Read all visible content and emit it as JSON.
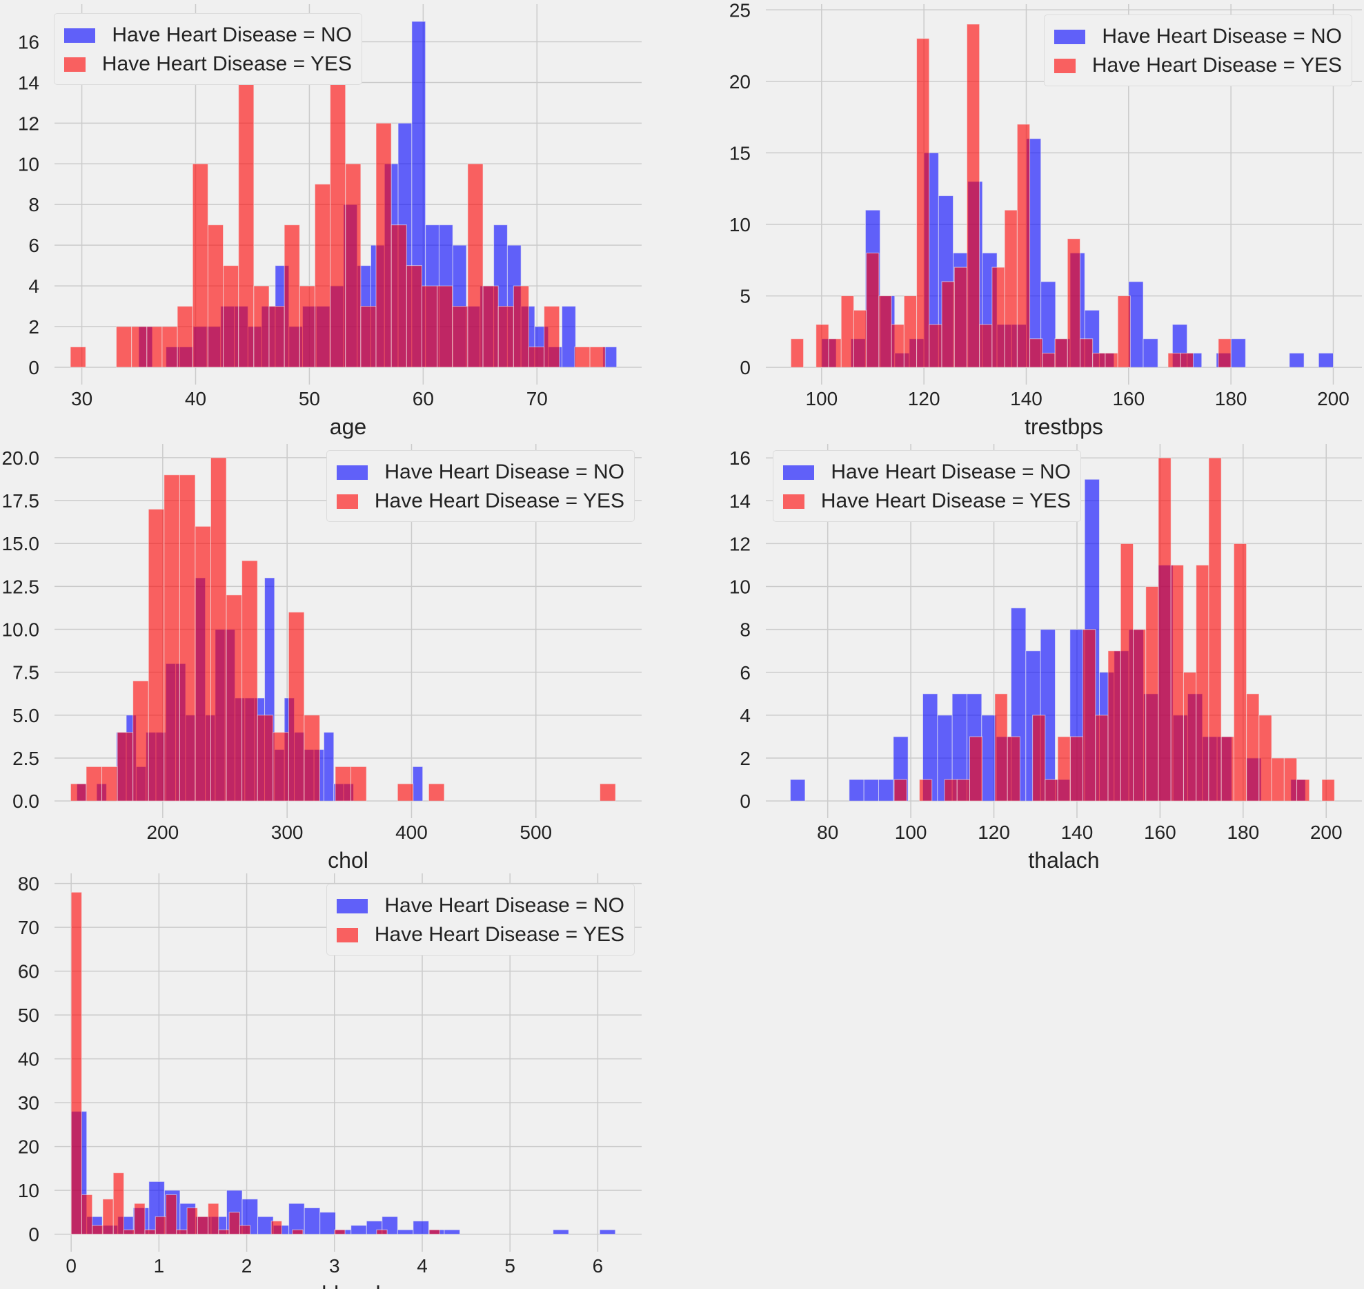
{
  "colors": {
    "no": "#0000ff",
    "yes": "#ff0000",
    "background": "#f0f0f0",
    "grid": "#cbcbcb"
  },
  "legend": {
    "no_label": "Have Heart Disease = NO",
    "yes_label": "Have Heart Disease = YES"
  },
  "chart_data": [
    {
      "type": "bar",
      "title": "",
      "xlabel": "age",
      "ylabel": "",
      "xlim": [
        27.6,
        79.2
      ],
      "ylim": [
        -0.85,
        17.85
      ],
      "grid": true,
      "legend": "top-left",
      "xticks": [
        30,
        40,
        50,
        60,
        70
      ],
      "xtick_labels": [
        "30",
        "40",
        "50",
        "60",
        "70"
      ],
      "yticks": [
        0,
        2,
        4,
        6,
        8,
        10,
        12,
        14,
        16
      ],
      "ytick_labels": [
        "0",
        "2",
        "4",
        "6",
        "8",
        "10",
        "12",
        "14",
        "16"
      ],
      "series": [
        {
          "name": "Have Heart Disease = NO",
          "color_key": "no",
          "range": [
            35,
            77
          ],
          "values": [
            2,
            0,
            1,
            1,
            2,
            2,
            3,
            3,
            2,
            3,
            5,
            2,
            3,
            3,
            4,
            8,
            5,
            6,
            10,
            12,
            17,
            7,
            7,
            6,
            3,
            4,
            7,
            6,
            3,
            2,
            1,
            3,
            0,
            0,
            1
          ]
        },
        {
          "name": "Have Heart Disease = YES",
          "color_key": "yes",
          "range": [
            29,
            76
          ],
          "values": [
            1,
            0,
            0,
            2,
            2,
            2,
            2,
            3,
            10,
            7,
            5,
            14,
            4,
            3,
            7,
            4,
            9,
            15,
            10,
            3,
            12,
            7,
            5,
            4,
            4,
            3,
            10,
            4,
            3,
            4,
            1,
            3,
            0,
            1,
            1
          ]
        }
      ]
    },
    {
      "type": "bar",
      "title": "",
      "xlabel": "trestbps",
      "ylabel": "",
      "xlim": [
        89.1,
        205.6
      ],
      "ylim": [
        -1.2,
        25.4
      ],
      "grid": true,
      "legend": "top-right",
      "xticks": [
        100,
        120,
        140,
        160,
        180,
        200
      ],
      "xtick_labels": [
        "100",
        "120",
        "140",
        "160",
        "180",
        "200"
      ],
      "yticks": [
        0,
        5,
        10,
        15,
        20,
        25
      ],
      "ytick_labels": [
        "0",
        "5",
        "10",
        "15",
        "20",
        "25"
      ],
      "series": [
        {
          "name": "Have Heart Disease = NO",
          "color_key": "no",
          "range": [
            100,
            200
          ],
          "values": [
            2,
            0,
            2,
            11,
            5,
            1,
            2,
            15,
            12,
            8,
            13,
            8,
            3,
            3,
            16,
            6,
            2,
            8,
            4,
            1,
            0,
            6,
            2,
            0,
            3,
            1,
            0,
            1,
            2,
            0,
            0,
            0,
            1,
            0,
            1
          ]
        },
        {
          "name": "Have Heart Disease = YES",
          "color_key": "yes",
          "range": [
            94,
            180
          ],
          "values": [
            2,
            0,
            3,
            2,
            5,
            4,
            8,
            5,
            3,
            5,
            23,
            3,
            6,
            7,
            24,
            3,
            7,
            11,
            17,
            2,
            1,
            2,
            9,
            2,
            1,
            1,
            5,
            0,
            0,
            0,
            1,
            1,
            0,
            0,
            2
          ]
        }
      ]
    },
    {
      "type": "bar",
      "title": "",
      "xlabel": "chol",
      "ylabel": "",
      "xlim": [
        113,
        585
      ],
      "ylim": [
        -1.0,
        20.8
      ],
      "grid": true,
      "legend": "top-right",
      "xticks": [
        200,
        300,
        400,
        500
      ],
      "xtick_labels": [
        "200",
        "300",
        "400",
        "500"
      ],
      "yticks": [
        0,
        2.5,
        5,
        7.5,
        10,
        12.5,
        15,
        17.5,
        20
      ],
      "ytick_labels": [
        "0.0",
        "2.5",
        "5.0",
        "7.5",
        "10.0",
        "12.5",
        "15.0",
        "17.5",
        "20.0"
      ],
      "series": [
        {
          "name": "Have Heart Disease = NO",
          "color_key": "no",
          "range": [
            131,
            409
          ],
          "values": [
            1,
            0,
            1,
            0,
            4,
            5,
            2,
            4,
            4,
            8,
            8,
            5,
            13,
            5,
            10,
            10,
            6,
            6,
            6,
            13,
            3,
            6,
            4,
            3,
            3,
            4,
            1,
            1,
            0,
            0,
            0,
            0,
            0,
            0,
            2
          ]
        },
        {
          "name": "Have Heart Disease = YES",
          "color_key": "yes",
          "range": [
            126,
            564
          ],
          "values": [
            1,
            2,
            2,
            4,
            7,
            17,
            19,
            19,
            16,
            20,
            12,
            14,
            5,
            4,
            11,
            5,
            0,
            2,
            2,
            0,
            0,
            1,
            0,
            1,
            0,
            0,
            0,
            0,
            0,
            0,
            0,
            0,
            0,
            0,
            1
          ]
        }
      ]
    },
    {
      "type": "bar",
      "title": "",
      "xlabel": "thalach",
      "ylabel": "",
      "xlim": [
        65.1,
        208.6
      ],
      "ylim": [
        -0.8,
        16.65
      ],
      "grid": true,
      "legend": "top-left",
      "xticks": [
        80,
        100,
        120,
        140,
        160,
        180,
        200
      ],
      "xtick_labels": [
        "80",
        "100",
        "120",
        "140",
        "160",
        "180",
        "200"
      ],
      "yticks": [
        0,
        2,
        4,
        6,
        8,
        10,
        12,
        14,
        16
      ],
      "ytick_labels": [
        "0",
        "2",
        "4",
        "6",
        "8",
        "10",
        "12",
        "14",
        "16"
      ],
      "series": [
        {
          "name": "Have Heart Disease = NO",
          "color_key": "no",
          "range": [
            71,
            195
          ],
          "values": [
            1,
            0,
            0,
            0,
            1,
            1,
            1,
            3,
            0,
            5,
            4,
            5,
            5,
            4,
            3,
            9,
            7,
            8,
            1,
            8,
            15,
            6,
            7,
            8,
            5,
            11,
            4,
            5,
            3,
            3,
            0,
            2,
            0,
            0,
            1
          ]
        },
        {
          "name": "Have Heart Disease = YES",
          "color_key": "yes",
          "range": [
            96,
            202
          ],
          "values": [
            1,
            0,
            1,
            0,
            1,
            1,
            3,
            0,
            5,
            3,
            0,
            4,
            1,
            3,
            3,
            8,
            4,
            7,
            12,
            8,
            10,
            16,
            11,
            6,
            11,
            16,
            3,
            12,
            5,
            4,
            2,
            2,
            1,
            0,
            1
          ]
        }
      ]
    },
    {
      "type": "bar",
      "title": "",
      "xlabel": "oldpeak",
      "ylabel": "",
      "xlim": [
        -0.19,
        6.5
      ],
      "ylim": [
        -4,
        82.3
      ],
      "grid": true,
      "legend": "top-right",
      "xticks": [
        0,
        1,
        2,
        3,
        4,
        5,
        6
      ],
      "xtick_labels": [
        "0",
        "1",
        "2",
        "3",
        "4",
        "5",
        "6"
      ],
      "yticks": [
        0,
        10,
        20,
        30,
        40,
        50,
        60,
        70,
        80
      ],
      "ytick_labels": [
        "0",
        "10",
        "20",
        "30",
        "40",
        "50",
        "60",
        "70",
        "80"
      ],
      "series": [
        {
          "name": "Have Heart Disease = NO",
          "color_key": "no",
          "range": [
            0,
            6.2
          ],
          "values": [
            28,
            4,
            2,
            4,
            6,
            12,
            10,
            7,
            4,
            4,
            10,
            8,
            4,
            2,
            7,
            6,
            5,
            1,
            2,
            3,
            4,
            1,
            3,
            1,
            1,
            0,
            0,
            0,
            0,
            0,
            0,
            1,
            0,
            0,
            1
          ]
        },
        {
          "name": "Have Heart Disease = YES",
          "color_key": "yes",
          "range": [
            0,
            4.2
          ],
          "values": [
            78,
            9,
            2,
            8,
            14,
            1,
            7,
            1,
            4,
            9,
            1,
            6,
            4,
            7,
            1,
            5,
            2,
            0,
            0,
            3,
            0,
            1,
            0,
            0,
            0,
            1,
            0,
            0,
            0,
            1,
            0,
            0,
            0,
            0,
            1
          ]
        }
      ]
    }
  ]
}
